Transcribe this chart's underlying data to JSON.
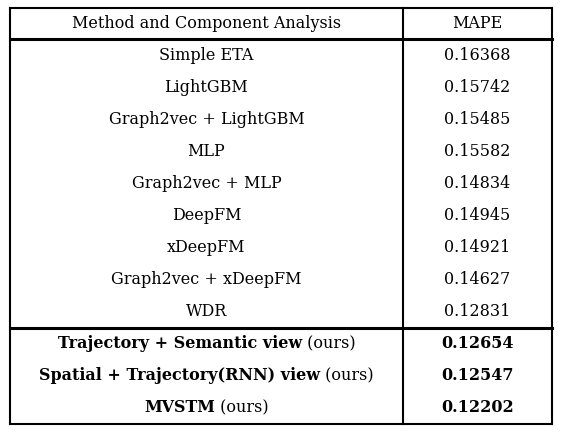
{
  "header": [
    "Method and Component Analysis",
    "MAPE"
  ],
  "regular_rows": [
    [
      "Simple ETA",
      "0.16368"
    ],
    [
      "LightGBM",
      "0.15742"
    ],
    [
      "Graph2vec + LightGBM",
      "0.15485"
    ],
    [
      "MLP",
      "0.15582"
    ],
    [
      "Graph2vec + MLP",
      "0.14834"
    ],
    [
      "DeepFM",
      "0.14945"
    ],
    [
      "xDeepFM",
      "0.14921"
    ],
    [
      "Graph2vec + xDeepFM",
      "0.14627"
    ],
    [
      "WDR",
      "0.12831"
    ]
  ],
  "bold_rows": [
    [
      [
        "Trajectory + Semantic view",
        " (ours)"
      ],
      "0.12654"
    ],
    [
      [
        "Spatial + Trajectory(RNN) view",
        " (ours)"
      ],
      "0.12547"
    ],
    [
      [
        "MVSTM",
        " (ours)"
      ],
      "0.12202"
    ]
  ],
  "col_split": 0.725,
  "bg_color": "#ffffff",
  "text_color": "#000000",
  "border_color": "#000000",
  "header_fontsize": 11.5,
  "body_fontsize": 11.5
}
